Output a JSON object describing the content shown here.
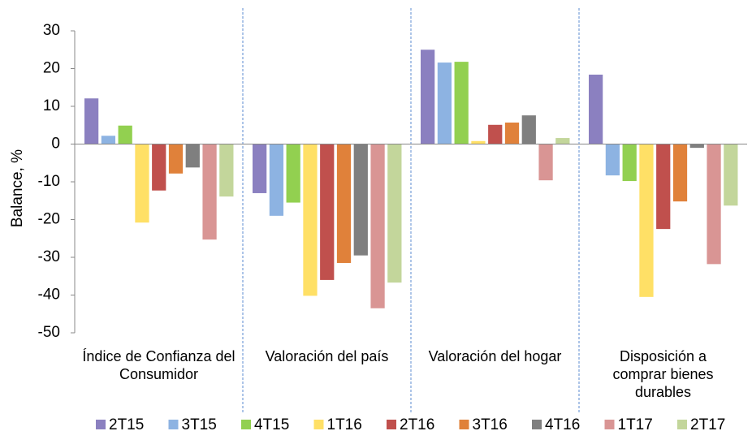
{
  "chart_data": {
    "type": "bar",
    "y_label": "Balance, %",
    "categories": [
      "Índice de Confianza del Consumidor",
      "Valoración del país",
      "Valoración del hogar",
      "Disposición a comprar bienes durables"
    ],
    "ylim": [
      -50,
      30
    ],
    "yticks": [
      -50,
      -40,
      -30,
      -20,
      -10,
      0,
      10,
      20,
      30
    ],
    "series": [
      {
        "name": "2T15",
        "color": "#8b80c0",
        "values": [
          12.1,
          -13,
          25,
          18.4
        ]
      },
      {
        "name": "3T15",
        "color": "#8db3e2",
        "values": [
          2.2,
          -19,
          21.6,
          -8.3
        ]
      },
      {
        "name": "4T15",
        "color": "#92d050",
        "values": [
          4.9,
          -15.5,
          21.8,
          -9.8
        ]
      },
      {
        "name": "1T16",
        "color": "#ffe066",
        "values": [
          -20.8,
          -40.2,
          0.8,
          -40.5
        ]
      },
      {
        "name": "2T16",
        "color": "#c0504d",
        "values": [
          -12.3,
          -36,
          5.1,
          -22.5
        ]
      },
      {
        "name": "3T16",
        "color": "#e0813a",
        "values": [
          -7.8,
          -31.5,
          5.7,
          -15.2
        ]
      },
      {
        "name": "4T16",
        "color": "#7f7f7f",
        "values": [
          -6.2,
          -29.5,
          7.6,
          -1
        ]
      },
      {
        "name": "1T17",
        "color": "#d99594",
        "values": [
          -25.3,
          -43.5,
          -9.6,
          -31.8
        ]
      },
      {
        "name": "2T17",
        "color": "#c3d69b",
        "values": [
          -13.9,
          -36.7,
          1.6,
          -16.3
        ]
      }
    ]
  }
}
